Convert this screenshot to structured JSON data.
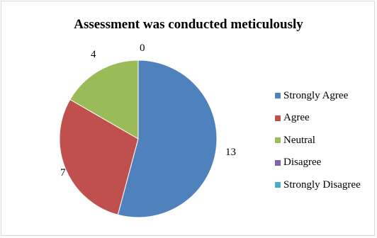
{
  "chart_data": {
    "type": "pie",
    "title": "Assessment was conducted meticulously",
    "categories": [
      "Strongly Agree",
      "Agree",
      "Neutral",
      "Disagree",
      "Strongly Disagree"
    ],
    "values": [
      13,
      7,
      4,
      0,
      0
    ],
    "labels": [
      "13",
      "7",
      "4",
      "0",
      ""
    ],
    "colors": [
      "#4f81bd",
      "#c0504d",
      "#9bbb59",
      "#8064a2",
      "#4bacc6"
    ],
    "legend_position": "right",
    "start_angle": "12 o'clock, clockwise"
  }
}
